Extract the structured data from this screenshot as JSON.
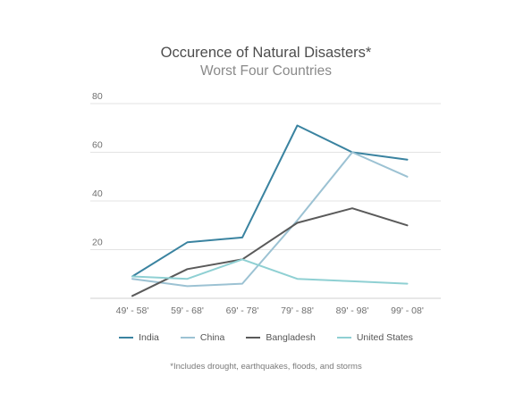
{
  "chart_data": {
    "type": "line",
    "title": "Occurence of Natural Disasters*",
    "subtitle": "Worst Four Countries",
    "categories": [
      "49' - 58'",
      "59' - 68'",
      "69' - 78'",
      "79' - 88'",
      "89' - 98'",
      "99' - 08'"
    ],
    "ylim": [
      0,
      80
    ],
    "yticks": [
      20,
      40,
      60,
      80
    ],
    "grid": true,
    "legend_position": "bottom",
    "series": [
      {
        "name": "India",
        "color": "#3a83a0",
        "values": [
          9,
          23,
          25,
          71,
          60,
          57
        ]
      },
      {
        "name": "China",
        "color": "#9cc2d3",
        "values": [
          8,
          5,
          6,
          32,
          60,
          50
        ]
      },
      {
        "name": "Bangladesh",
        "color": "#5a5a5a",
        "values": [
          1,
          12,
          16,
          31,
          37,
          30
        ]
      },
      {
        "name": "United States",
        "color": "#8fd0d3",
        "values": [
          9,
          8,
          16,
          8,
          7,
          6
        ]
      }
    ],
    "footnote": "*Includes drought, earthquakes, floods, and storms"
  }
}
